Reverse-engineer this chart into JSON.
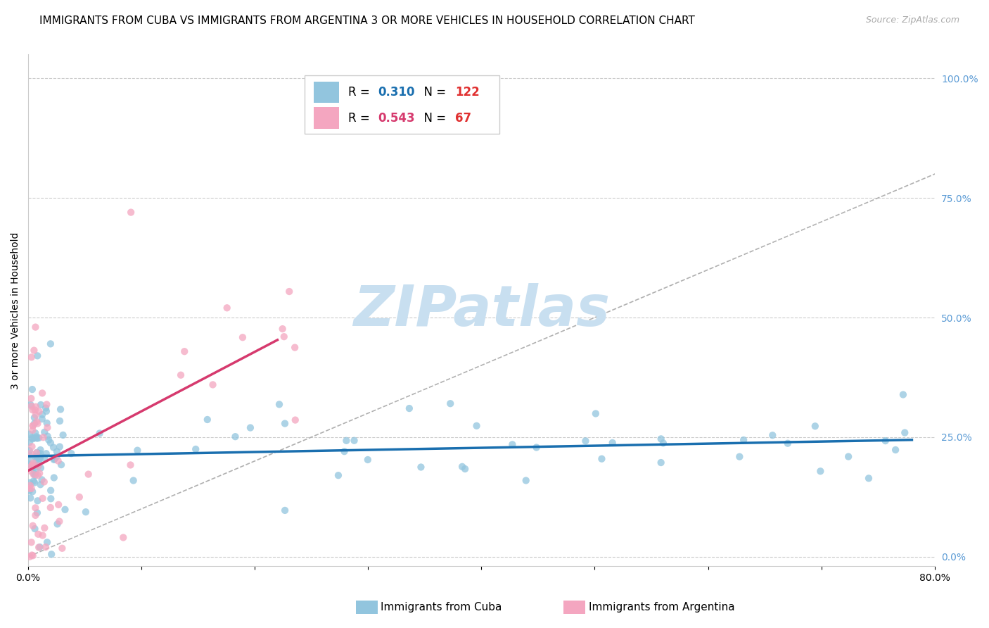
{
  "title": "IMMIGRANTS FROM CUBA VS IMMIGRANTS FROM ARGENTINA 3 OR MORE VEHICLES IN HOUSEHOLD CORRELATION CHART",
  "source": "Source: ZipAtlas.com",
  "ylabel": "3 or more Vehicles in Household",
  "xlim": [
    0.0,
    0.8
  ],
  "ylim": [
    -0.02,
    1.05
  ],
  "cuba_R": 0.31,
  "cuba_N": 122,
  "argentina_R": 0.543,
  "argentina_N": 67,
  "cuba_color": "#92c5de",
  "argentina_color": "#f4a6c0",
  "cuba_line_color": "#1a6faf",
  "argentina_line_color": "#d63a6e",
  "background_color": "#ffffff",
  "grid_color": "#cccccc",
  "right_axis_color": "#5b9bd5",
  "title_fontsize": 11,
  "axis_label_fontsize": 10,
  "tick_fontsize": 10,
  "watermark_text": "ZIPatlas",
  "watermark_color": "#c8dff0",
  "right_yticks": [
    0.0,
    0.25,
    0.5,
    0.75,
    1.0
  ],
  "right_ytick_labels": [
    "0.0%",
    "25.0%",
    "50.0%",
    "75.0%",
    "100.0%"
  ],
  "xticks": [
    0.0,
    0.1,
    0.2,
    0.3,
    0.4,
    0.5,
    0.6,
    0.7,
    0.8
  ],
  "xtick_labels": [
    "0.0%",
    "",
    "",
    "",
    "",
    "",
    "",
    "",
    "80.0%"
  ]
}
